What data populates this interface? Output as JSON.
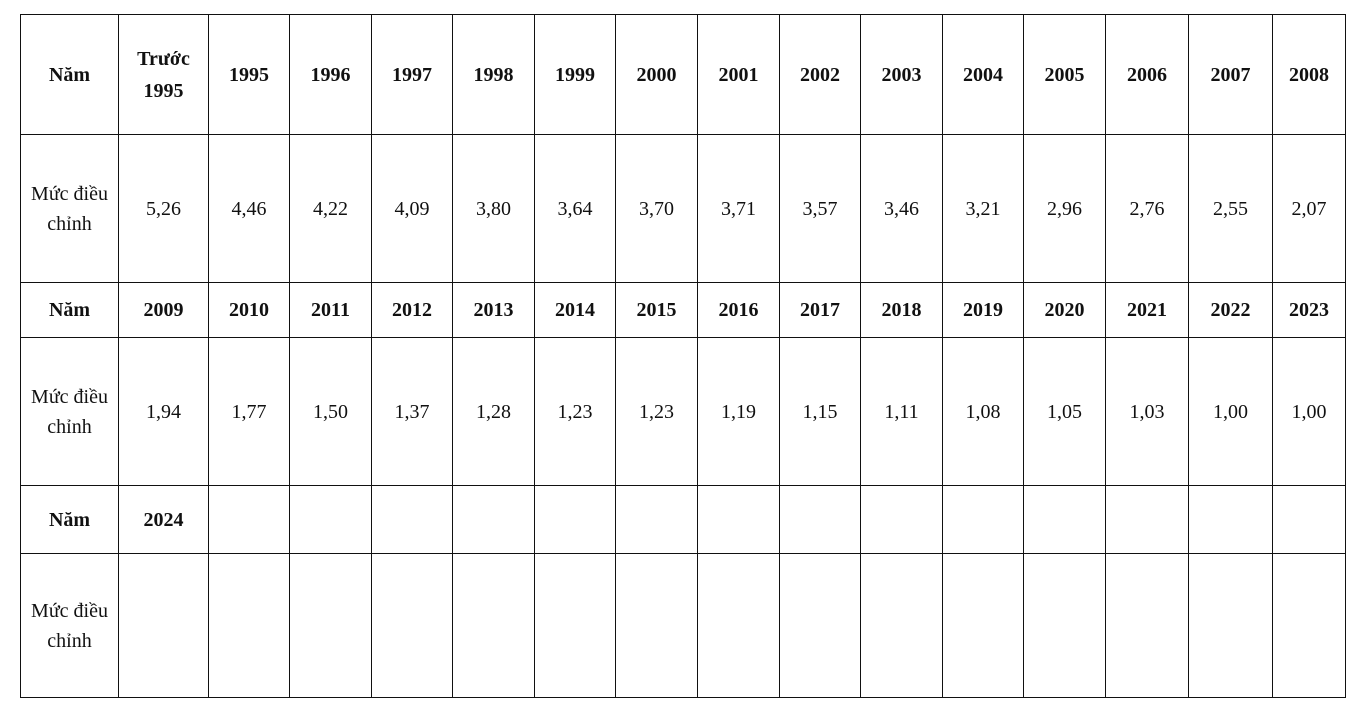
{
  "table": {
    "rows": [
      [
        "Năm",
        "Trước 1995",
        "1995",
        "1996",
        "1997",
        "1998",
        "1999",
        "2000",
        "2001",
        "2002",
        "2003",
        "2004",
        "2005",
        "2006",
        "2007",
        "2008"
      ],
      [
        "Mức điều chỉnh",
        "5,26",
        "4,46",
        "4,22",
        "4,09",
        "3,80",
        "3,64",
        "3,70",
        "3,71",
        "3,57",
        "3,46",
        "3,21",
        "2,96",
        "2,76",
        "2,55",
        "2,07"
      ],
      [
        "Năm",
        "2009",
        "2010",
        "2011",
        "2012",
        "2013",
        "2014",
        "2015",
        "2016",
        "2017",
        "2018",
        "2019",
        "2020",
        "2021",
        "2022",
        "2023"
      ],
      [
        "Mức điều chỉnh",
        "1,94",
        "1,77",
        "1,50",
        "1,37",
        "1,28",
        "1,23",
        "1,23",
        "1,19",
        "1,15",
        "1,11",
        "1,08",
        "1,05",
        "1,03",
        "1,00",
        "1,00"
      ],
      [
        "Năm",
        "2024"
      ],
      [
        "Mức điều chỉnh"
      ]
    ]
  }
}
